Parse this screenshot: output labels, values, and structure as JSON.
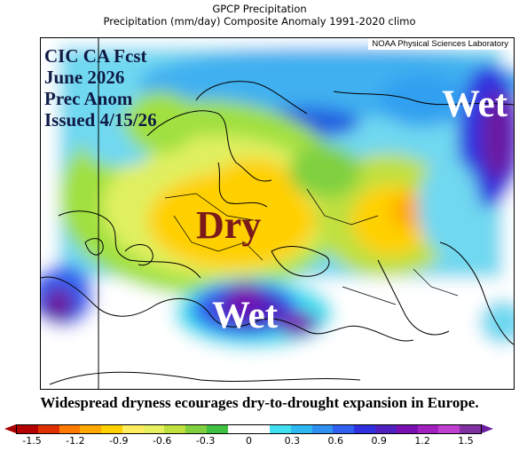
{
  "header": {
    "title": "GPCP Precipitation",
    "subtitle": "Precipitation (mm/day) Composite Anomaly 1991-2020 climo"
  },
  "map": {
    "credit": "NOAA Physical Sciences Laboratory",
    "forecast_lines": [
      "CIC CA Fcst",
      "June 2026",
      "Prec Anom",
      "Issued 4/15/26"
    ],
    "annotations": {
      "dry": "Dry",
      "wet_mediterranean": "Wet",
      "wet_east": "Wet"
    },
    "colors": {
      "dry_label": "#7a1a1a",
      "wet_label": "#ffffff",
      "forecast_text": "#0f1a45"
    }
  },
  "caption": "Widespread dryness ecourages dry-to-drought expansion in Europe.",
  "colorbar": {
    "ticks": [
      "-1.5",
      "-1.2",
      "-0.9",
      "-0.6",
      "-0.3",
      "0",
      "0.3",
      "0.6",
      "0.9",
      "1.2",
      "1.5"
    ],
    "colors": [
      "#b40000",
      "#e03000",
      "#ff7a00",
      "#ffa800",
      "#ffd000",
      "#ffee60",
      "#e8f060",
      "#c0e040",
      "#80d040",
      "#40c040",
      "#ffffff",
      "#ffffff",
      "#40e0f0",
      "#30b8f0",
      "#3090f0",
      "#3060f0",
      "#3030e0",
      "#5020c0",
      "#7a10b0",
      "#a020c0",
      "#c040d0",
      "#8030a0"
    ]
  }
}
